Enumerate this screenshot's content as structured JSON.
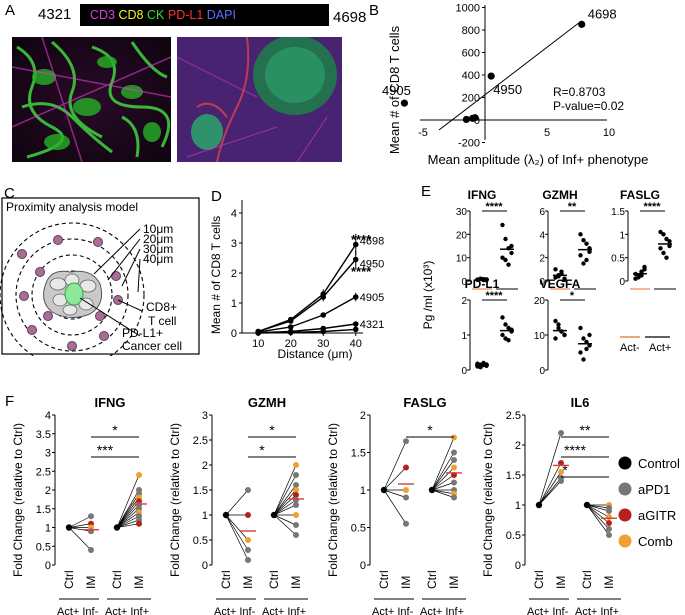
{
  "panelA": {
    "letter": "A",
    "left_id": "4321",
    "right_id": "4698",
    "legend": [
      {
        "text": "CD3",
        "color": "#e13be0"
      },
      {
        "text": "CD8",
        "color": "#f2f22a"
      },
      {
        "text": "CK",
        "color": "#35e035"
      },
      {
        "text": "PD-L1",
        "color": "#ff3030"
      },
      {
        "text": "DAPI",
        "color": "#5a6cff"
      }
    ]
  },
  "panelB": {
    "letter": "B",
    "ylabel": "Mean # of  CD8 T cells",
    "xlabel": "Mean amplitude (λ₂) of Inf+ phenotype",
    "stats": [
      "R=0.8703",
      "P-value=0.02"
    ],
    "xticks": [
      "-5",
      "5",
      "10"
    ],
    "yticks": [
      "1000",
      "800",
      "600",
      "400",
      "200",
      "0",
      "-200"
    ]
  },
  "panelC": {
    "letter": "C",
    "title": "Proximity analysis model",
    "rings": [
      "10μm",
      "20μm",
      "30μm",
      "40μm"
    ],
    "tcell": [
      "CD8+",
      "T cell"
    ],
    "cancer": [
      "PD-L1+",
      "Cancer cell"
    ]
  },
  "panelD": {
    "letter": "D",
    "ylabel": "Mean # of CD8 T cells",
    "xlabel": "Distance (μm)",
    "xticks": [
      "10",
      "20",
      "30",
      "40"
    ],
    "yticks": [
      "0",
      "1",
      "2",
      "3",
      "4"
    ],
    "sig": [
      "****",
      "****"
    ]
  },
  "panelE": {
    "letter": "E",
    "ylabel": "Pg /ml (x10³)",
    "groups": [
      "Act-",
      "Act+"
    ],
    "plots": [
      {
        "title": "IFNG",
        "sig": "****",
        "yticks": [
          "30",
          "20",
          "10",
          "0"
        ]
      },
      {
        "title": "GZMH",
        "sig": "**",
        "yticks": [
          "6",
          "4",
          "2",
          "0"
        ]
      },
      {
        "title": "FASLG",
        "sig": "****",
        "yticks": [
          "1.5",
          "1",
          "0.5",
          "0"
        ]
      },
      {
        "title": "PD-L1",
        "sig": "****",
        "yticks": [
          "2",
          "1",
          "0"
        ]
      },
      {
        "title": "VEGFA",
        "sig": "*",
        "yticks": [
          "20",
          "10",
          "0"
        ]
      }
    ]
  },
  "panelF": {
    "letter": "F",
    "ylabel": "Fold Change (relative to Ctrl)",
    "xcats": [
      "Ctrl",
      "IM"
    ],
    "groups": [
      "Act+ Inf-",
      "Act+ Inf+"
    ],
    "legend": [
      {
        "text": "Control",
        "color": "#000000"
      },
      {
        "text": "aPD1",
        "color": "#777777"
      },
      {
        "text": "aGITR",
        "color": "#b5221e"
      },
      {
        "text": "Comb",
        "color": "#f0a030"
      }
    ],
    "plots": [
      {
        "title": "IFNG",
        "yticks": [
          "4",
          "3.5",
          "3",
          "2.5",
          "2",
          "1.5",
          "1",
          "0.5",
          "0"
        ],
        "sigs": [
          "*",
          "***"
        ]
      },
      {
        "title": "GZMH",
        "yticks": [
          "3",
          "2.5",
          "2",
          "1.5",
          "1",
          "0.5",
          "0"
        ],
        "sigs": [
          "*",
          "*"
        ]
      },
      {
        "title": "FASLG",
        "yticks": [
          "2",
          "1.5",
          "1",
          "0.5",
          "0"
        ],
        "sigs": [
          "*"
        ]
      },
      {
        "title": "IL6",
        "yticks": [
          "2.5",
          "2",
          "1.5",
          "1",
          "0.5",
          "0"
        ],
        "sigs": [
          "**",
          "****",
          "*"
        ]
      }
    ]
  },
  "chart_data": [
    {
      "type": "scatter",
      "panel": "B",
      "xlabel": "Mean amplitude (λ₂) of Inf+ phenotype",
      "ylabel": "Mean # of  CD8 T cells",
      "xlim": [
        -7,
        10
      ],
      "ylim": [
        -200,
        1000
      ],
      "points": [
        {
          "label": "4698",
          "x": 7.8,
          "y": 850
        },
        {
          "label": "4950",
          "x": 0.5,
          "y": 390
        },
        {
          "label": "4905",
          "x": -6.5,
          "y": 150
        },
        {
          "label": "",
          "x": -1.5,
          "y": 5
        },
        {
          "label": "",
          "x": -1.0,
          "y": 15
        },
        {
          "label": "",
          "x": -0.8,
          "y": 20
        }
      ],
      "annotations": [
        "R=0.8703",
        "P-value=0.02"
      ]
    },
    {
      "type": "line",
      "panel": "D",
      "xlabel": "Distance (μm)",
      "ylabel": "Mean # of CD8 T cells",
      "x": [
        10,
        20,
        30,
        40
      ],
      "ylim": [
        0,
        4
      ],
      "series": [
        {
          "name": "4698",
          "values": [
            0.05,
            0.45,
            1.3,
            2.95
          ]
        },
        {
          "name": "4950",
          "values": [
            0.05,
            0.4,
            1.2,
            2.45
          ]
        },
        {
          "name": "4905",
          "values": [
            0.03,
            0.2,
            0.6,
            1.2
          ]
        },
        {
          "name": "4321",
          "values": [
            0.01,
            0.05,
            0.15,
            0.3
          ]
        },
        {
          "name": "",
          "values": [
            0.0,
            0.02,
            0.05,
            0.12
          ]
        }
      ]
    },
    {
      "type": "scatter",
      "panel": "E",
      "groups": [
        "Act-",
        "Act+"
      ],
      "series": [
        {
          "name": "IFNG",
          "ylim": [
            0,
            30
          ],
          "act_minus": [
            0.5,
            1,
            0.8,
            0.3,
            0.6,
            0.9,
            0.4,
            0.7
          ],
          "act_plus": [
            24,
            18,
            14,
            12,
            10,
            9,
            7,
            15
          ]
        },
        {
          "name": "GZMH",
          "ylim": [
            0,
            6
          ],
          "act_minus": [
            0.3,
            0.5,
            0.8,
            0.2,
            1.0,
            0.4,
            0.6,
            0.1
          ],
          "act_plus": [
            4,
            3.5,
            3.2,
            2.5,
            2.2,
            1.5,
            1.8,
            2.8
          ]
        },
        {
          "name": "FASLG",
          "ylim": [
            0,
            1.5
          ],
          "act_minus": [
            0.05,
            0.1,
            0.2,
            0.3,
            0.15,
            0.08,
            0.12,
            0.25
          ],
          "act_plus": [
            1.05,
            1.0,
            0.9,
            0.85,
            0.7,
            0.6,
            0.5,
            0.75
          ]
        },
        {
          "name": "PD-L1",
          "ylim": [
            0,
            2
          ],
          "act_minus": [
            0.1,
            0.15,
            0.2,
            0.12,
            0.18,
            0.08,
            0.14,
            0.16
          ],
          "act_plus": [
            1.5,
            1.3,
            1.2,
            1.1,
            1.0,
            0.9,
            0.85,
            1.15
          ]
        },
        {
          "name": "VEGFA",
          "ylim": [
            0,
            20
          ],
          "act_minus": [
            14,
            12,
            11,
            10,
            9,
            13,
            11,
            10
          ],
          "act_plus": [
            12,
            9,
            8,
            7,
            5,
            3,
            6,
            10
          ]
        }
      ]
    },
    {
      "type": "line",
      "panel": "F",
      "x": [
        "Ctrl",
        "IM"
      ],
      "groups": [
        "Act+ Inf-",
        "Act+ Inf+"
      ],
      "series": [
        {
          "name": "IFNG",
          "ylim": [
            0,
            4
          ],
          "inf_minus": [
            1.3,
            1.1,
            1.0,
            0.9,
            0.4
          ],
          "inf_plus": [
            2.4,
            2.0,
            1.9,
            1.8,
            1.7,
            1.6,
            1.5,
            1.4,
            1.3,
            1.2,
            1.1
          ]
        },
        {
          "name": "GZMH",
          "ylim": [
            0,
            3
          ],
          "inf_minus": [
            1.5,
            1.0,
            0.5,
            0.3,
            0.1
          ],
          "inf_plus": [
            2.0,
            1.8,
            1.6,
            1.5,
            1.4,
            1.3,
            1.2,
            1.0,
            0.8,
            0.6
          ]
        },
        {
          "name": "FASLG",
          "ylim": [
            0,
            2
          ],
          "inf_minus": [
            1.65,
            1.3,
            1.0,
            0.9,
            0.55
          ],
          "inf_plus": [
            1.7,
            1.5,
            1.4,
            1.3,
            1.2,
            1.1,
            1.0,
            0.95,
            0.9
          ]
        },
        {
          "name": "IL6",
          "ylim": [
            0,
            2.5
          ],
          "inf_minus": [
            2.2,
            1.7,
            1.55,
            1.45,
            1.4
          ],
          "inf_plus": [
            1.0,
            0.95,
            0.9,
            0.8,
            0.7,
            0.6,
            0.5
          ]
        }
      ]
    }
  ]
}
